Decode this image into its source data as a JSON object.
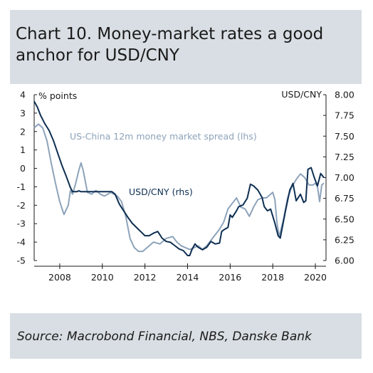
{
  "title": "Chart 10. Money-market rates a good anchor for USD/CNY",
  "source": "Source: Macrobond Financial, NBS, Danske Bank",
  "colors": {
    "frame": "#d8dee3",
    "spread": "#8da3ba",
    "usdcny": "#0e2f52"
  },
  "chart_data": {
    "type": "line",
    "left_unit": "% points",
    "right_unit": "USD/CNY",
    "ylim_left": [
      -5,
      4
    ],
    "ylim_right": [
      6.0,
      8.0
    ],
    "x_range": [
      2006.8,
      2020.5
    ],
    "x_ticks": [
      "2008",
      "2010",
      "2012",
      "2014",
      "2016",
      "2018",
      "2020"
    ],
    "left_ticks": [
      "4",
      "3",
      "2",
      "1",
      "0",
      "-1",
      "-2",
      "-3",
      "-4",
      "-5"
    ],
    "right_ticks": [
      "8.00",
      "7.75",
      "7.50",
      "7.25",
      "7.00",
      "6.75",
      "6.50",
      "6.25",
      "6.00"
    ],
    "annotations": [
      "US-China 12m money market spread (lhs)",
      "USD/CNY (rhs)"
    ],
    "series": [
      {
        "name": "US-China 12m money market spread (lhs)",
        "axis": "left",
        "x": [
          2006.8,
          2007.0,
          2007.2,
          2007.4,
          2007.6,
          2007.8,
          2008.0,
          2008.2,
          2008.4,
          2008.5,
          2008.6,
          2008.75,
          2008.9,
          2009.0,
          2009.1,
          2009.3,
          2009.5,
          2009.7,
          2009.9,
          2010.1,
          2010.4,
          2010.7,
          2010.9,
          2011.1,
          2011.3,
          2011.5,
          2011.7,
          2011.9,
          2012.1,
          2012.4,
          2012.7,
          2013.0,
          2013.3,
          2013.5,
          2013.7,
          2013.9,
          2014.1,
          2014.3,
          2014.5,
          2014.7,
          2014.9,
          2015.1,
          2015.3,
          2015.5,
          2015.7,
          2015.9,
          2016.1,
          2016.3,
          2016.5,
          2016.7,
          2016.9,
          2017.1,
          2017.3,
          2017.5,
          2017.7,
          2017.9,
          2018.0,
          2018.1,
          2018.2,
          2018.3,
          2018.5,
          2018.7,
          2018.9,
          2019.1,
          2019.3,
          2019.5,
          2019.7,
          2019.9,
          2020.0,
          2020.1,
          2020.2,
          2020.3,
          2020.4
        ],
        "values": [
          2.2,
          2.4,
          2.2,
          1.5,
          0.3,
          -0.8,
          -1.8,
          -2.5,
          -2.0,
          -1.2,
          -1.4,
          -0.8,
          -0.1,
          0.3,
          -0.1,
          -1.3,
          -1.4,
          -1.2,
          -1.4,
          -1.5,
          -1.3,
          -1.5,
          -1.8,
          -2.6,
          -3.8,
          -4.3,
          -4.5,
          -4.5,
          -4.3,
          -4.0,
          -4.1,
          -3.8,
          -3.7,
          -4.0,
          -4.2,
          -4.3,
          -4.4,
          -4.3,
          -4.2,
          -4.4,
          -4.2,
          -3.9,
          -3.6,
          -3.3,
          -2.9,
          -2.2,
          -1.9,
          -1.6,
          -2.1,
          -2.2,
          -2.6,
          -2.1,
          -1.7,
          -1.6,
          -1.6,
          -1.4,
          -1.3,
          -1.7,
          -3.0,
          -3.7,
          -2.8,
          -1.6,
          -1.0,
          -0.6,
          -0.3,
          -0.5,
          -0.9,
          -0.9,
          -0.8,
          -1.0,
          -1.8,
          -0.9,
          -0.8
        ]
      },
      {
        "name": "USD/CNY (rhs)",
        "axis": "right",
        "x": [
          2006.8,
          2006.95,
          2007.1,
          2007.3,
          2007.5,
          2007.7,
          2007.9,
          2008.1,
          2008.3,
          2008.5,
          2008.6,
          2008.7,
          2008.8,
          2008.9,
          2009.0,
          2009.3,
          2009.6,
          2009.9,
          2010.2,
          2010.45,
          2010.6,
          2010.8,
          2011.0,
          2011.2,
          2011.4,
          2011.6,
          2011.8,
          2012.0,
          2012.2,
          2012.4,
          2012.6,
          2012.8,
          2013.0,
          2013.2,
          2013.4,
          2013.6,
          2013.8,
          2014.0,
          2014.1,
          2014.2,
          2014.35,
          2014.5,
          2014.7,
          2014.9,
          2015.1,
          2015.3,
          2015.5,
          2015.6,
          2015.7,
          2015.9,
          2016.0,
          2016.1,
          2016.3,
          2016.4,
          2016.6,
          2016.8,
          2016.95,
          2017.1,
          2017.3,
          2017.5,
          2017.6,
          2017.75,
          2017.9,
          2018.1,
          2018.25,
          2018.35,
          2018.45,
          2018.6,
          2018.8,
          2018.95,
          2019.1,
          2019.3,
          2019.45,
          2019.55,
          2019.65,
          2019.8,
          2019.95,
          2020.1,
          2020.25,
          2020.4
        ],
        "values": [
          7.92,
          7.85,
          7.75,
          7.65,
          7.57,
          7.45,
          7.3,
          7.15,
          7.02,
          6.88,
          6.83,
          6.83,
          6.83,
          6.84,
          6.83,
          6.83,
          6.83,
          6.83,
          6.83,
          6.83,
          6.8,
          6.68,
          6.6,
          6.52,
          6.45,
          6.4,
          6.35,
          6.3,
          6.3,
          6.33,
          6.35,
          6.27,
          6.23,
          6.22,
          6.18,
          6.14,
          6.12,
          6.06,
          6.06,
          6.13,
          6.2,
          6.16,
          6.13,
          6.16,
          6.23,
          6.2,
          6.21,
          6.35,
          6.37,
          6.4,
          6.55,
          6.52,
          6.6,
          6.65,
          6.67,
          6.75,
          6.92,
          6.9,
          6.85,
          6.76,
          6.65,
          6.6,
          6.62,
          6.45,
          6.3,
          6.27,
          6.4,
          6.6,
          6.85,
          6.93,
          6.72,
          6.8,
          6.7,
          6.72,
          7.1,
          7.12,
          7.0,
          6.9,
          7.05,
          7.0
        ]
      }
    ]
  }
}
